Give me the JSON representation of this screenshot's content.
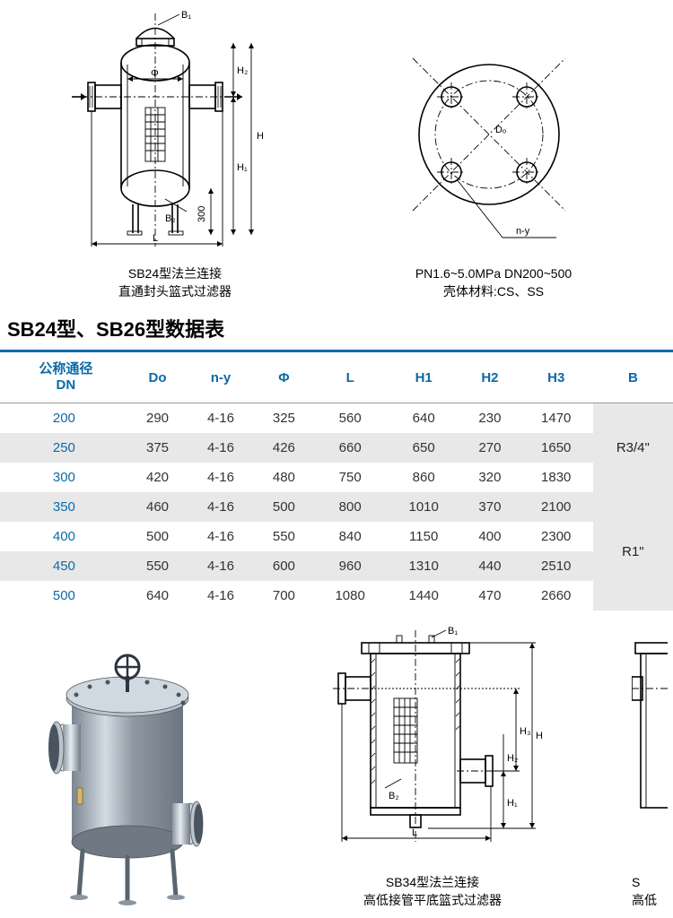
{
  "diagrams": {
    "left": {
      "caption_line1": "SB24型法兰连接",
      "caption_line2": "直通封头篮式过滤器",
      "labels": {
        "B1": "B₁",
        "B2": "B₂",
        "Phi": "Φ",
        "H": "H",
        "H1": "H₁",
        "H2": "H₂",
        "L": "L",
        "d300": "300"
      }
    },
    "right": {
      "caption_line1": "PN1.6~5.0MPa DN200~500",
      "caption_line2": "壳体材料:CS、SS",
      "labels": {
        "Do": "Dₒ",
        "ny": "n-y"
      }
    }
  },
  "section_title": "SB24型、SB26型数据表",
  "table": {
    "header_color": "#0a6aa8",
    "stripe_color": "#e8e8e8",
    "columns": [
      "公称通径\nDN",
      "Do",
      "n-y",
      "Φ",
      "L",
      "H1",
      "H2",
      "H3",
      "B"
    ],
    "rows": [
      {
        "DN": "200",
        "Do": "290",
        "ny": "4-16",
        "Phi": "325",
        "L": "560",
        "H1": "640",
        "H2": "230",
        "H3": "1470"
      },
      {
        "DN": "250",
        "Do": "375",
        "ny": "4-16",
        "Phi": "426",
        "L": "660",
        "H1": "650",
        "H2": "270",
        "H3": "1650"
      },
      {
        "DN": "300",
        "Do": "420",
        "ny": "4-16",
        "Phi": "480",
        "L": "750",
        "H1": "860",
        "H2": "320",
        "H3": "1830"
      },
      {
        "DN": "350",
        "Do": "460",
        "ny": "4-16",
        "Phi": "500",
        "L": "800",
        "H1": "1010",
        "H2": "370",
        "H3": "2100"
      },
      {
        "DN": "400",
        "Do": "500",
        "ny": "4-16",
        "Phi": "550",
        "L": "840",
        "H1": "1150",
        "H2": "400",
        "H3": "2300"
      },
      {
        "DN": "450",
        "Do": "550",
        "ny": "4-16",
        "Phi": "600",
        "L": "960",
        "H1": "1310",
        "H2": "440",
        "H3": "2510"
      },
      {
        "DN": "500",
        "Do": "640",
        "ny": "4-16",
        "Phi": "700",
        "L": "1080",
        "H1": "1440",
        "H2": "470",
        "H3": "2660"
      }
    ],
    "b_merge": [
      {
        "value": "R3/4\"",
        "span": 3
      },
      {
        "value": "R1\"",
        "span": 4
      }
    ]
  },
  "bottom": {
    "middle": {
      "caption_line1": "SB34型法兰连接",
      "caption_line2": "高低接管平底篮式过滤器",
      "labels": {
        "B1": "B₁",
        "B2": "B₂",
        "H": "H",
        "H1": "H₁",
        "H2": "H₂",
        "H3": "H₃",
        "L": "L"
      }
    },
    "right": {
      "caption_line1": "S",
      "caption_line2": "高低"
    }
  }
}
